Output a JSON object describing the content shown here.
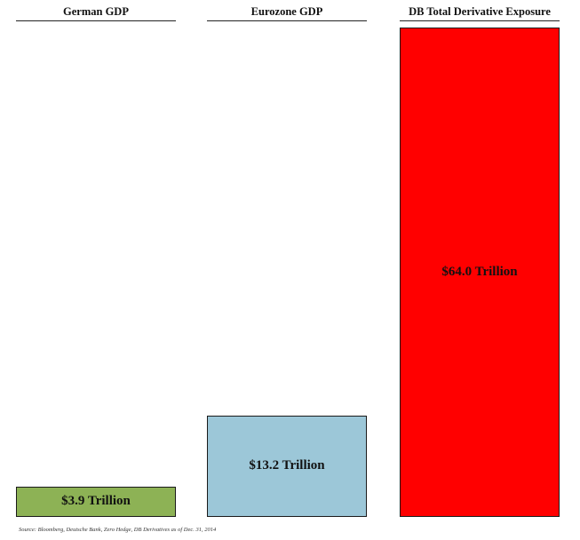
{
  "chart_data": {
    "type": "bar",
    "categories": [
      "German GDP",
      "Eurozone GDP",
      "DB Total Derivative Exposure"
    ],
    "values": [
      3.9,
      13.2,
      64.0
    ],
    "data_labels": [
      "$3.9 Trillion",
      "$13.2 Trillion",
      "$64.0 Trillion"
    ],
    "colors": [
      "#8DB255",
      "#9CC7D8",
      "#FF0000"
    ],
    "unit": "Trillion",
    "title": "",
    "xlabel": "",
    "ylabel": "",
    "ylim": [
      0,
      64.0
    ],
    "grid": false,
    "legend": "none"
  },
  "source_note": "Source: Bloomberg, Deutsche Bank, Zero Hedge, DB Derivatives as of  Dec. 31, 2014"
}
